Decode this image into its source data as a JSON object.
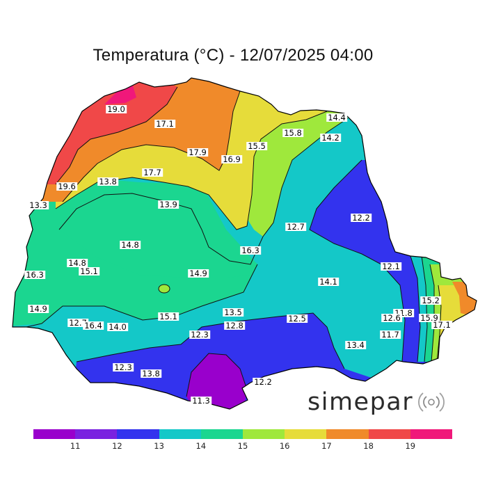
{
  "title": "Temperatura (°C) - 12/07/2025 04:00",
  "logo": {
    "text": "simepar",
    "icon": "radio-waves-icon"
  },
  "legend": {
    "colors": [
      "#9900cc",
      "#6d1ee0",
      "#3333ee",
      "#1f5fe8",
      "#14c8c8",
      "#1bd690",
      "#9fe83c",
      "#e6dc3a",
      "#f08a2a",
      "#f04848",
      "#f0187a"
    ],
    "ticks": [
      "11",
      "12",
      "13",
      "14",
      "15",
      "16",
      "17",
      "18",
      "19"
    ]
  },
  "zones": [
    {
      "name": "zone-violet-south",
      "color": "#9900cc"
    },
    {
      "name": "zone-blue-east",
      "color": "#3333ee"
    },
    {
      "name": "zone-blue-south",
      "color": "#3333ee"
    },
    {
      "name": "zone-cyan",
      "color": "#14c8c8"
    },
    {
      "name": "zone-green",
      "color": "#1bd690"
    },
    {
      "name": "zone-lime",
      "color": "#9fe83c"
    },
    {
      "name": "zone-yellow",
      "color": "#e6dc3a"
    },
    {
      "name": "zone-orange",
      "color": "#f08a2a"
    },
    {
      "name": "zone-red",
      "color": "#f04848"
    },
    {
      "name": "zone-magenta",
      "color": "#f0187a"
    }
  ],
  "stations": [
    {
      "value": "19.0"
    },
    {
      "value": "17.1"
    },
    {
      "value": "17.9"
    },
    {
      "value": "16.9"
    },
    {
      "value": "15.5"
    },
    {
      "value": "15.8"
    },
    {
      "value": "14.4"
    },
    {
      "value": "14.2"
    },
    {
      "value": "17.7"
    },
    {
      "value": "13.8"
    },
    {
      "value": "19.6"
    },
    {
      "value": "13.3"
    },
    {
      "value": "13.9"
    },
    {
      "value": "12.7"
    },
    {
      "value": "12.2"
    },
    {
      "value": "14.8"
    },
    {
      "value": "16.3"
    },
    {
      "value": "14.8"
    },
    {
      "value": "15.1"
    },
    {
      "value": "16.3"
    },
    {
      "value": "14.9"
    },
    {
      "value": "12.1"
    },
    {
      "value": "14.1"
    },
    {
      "value": "15.2"
    },
    {
      "value": "14.9"
    },
    {
      "value": "13.5"
    },
    {
      "value": "12.8"
    },
    {
      "value": "12.5"
    },
    {
      "value": "11.8"
    },
    {
      "value": "12.6"
    },
    {
      "value": "15.9"
    },
    {
      "value": "17.1"
    },
    {
      "value": "12.7"
    },
    {
      "value": "16.4"
    },
    {
      "value": "14.0"
    },
    {
      "value": "15.1"
    },
    {
      "value": "12.3"
    },
    {
      "value": "11.7"
    },
    {
      "value": "13.4"
    },
    {
      "value": "12.3"
    },
    {
      "value": "13.8"
    },
    {
      "value": "12.2"
    },
    {
      "value": "11.3"
    }
  ]
}
